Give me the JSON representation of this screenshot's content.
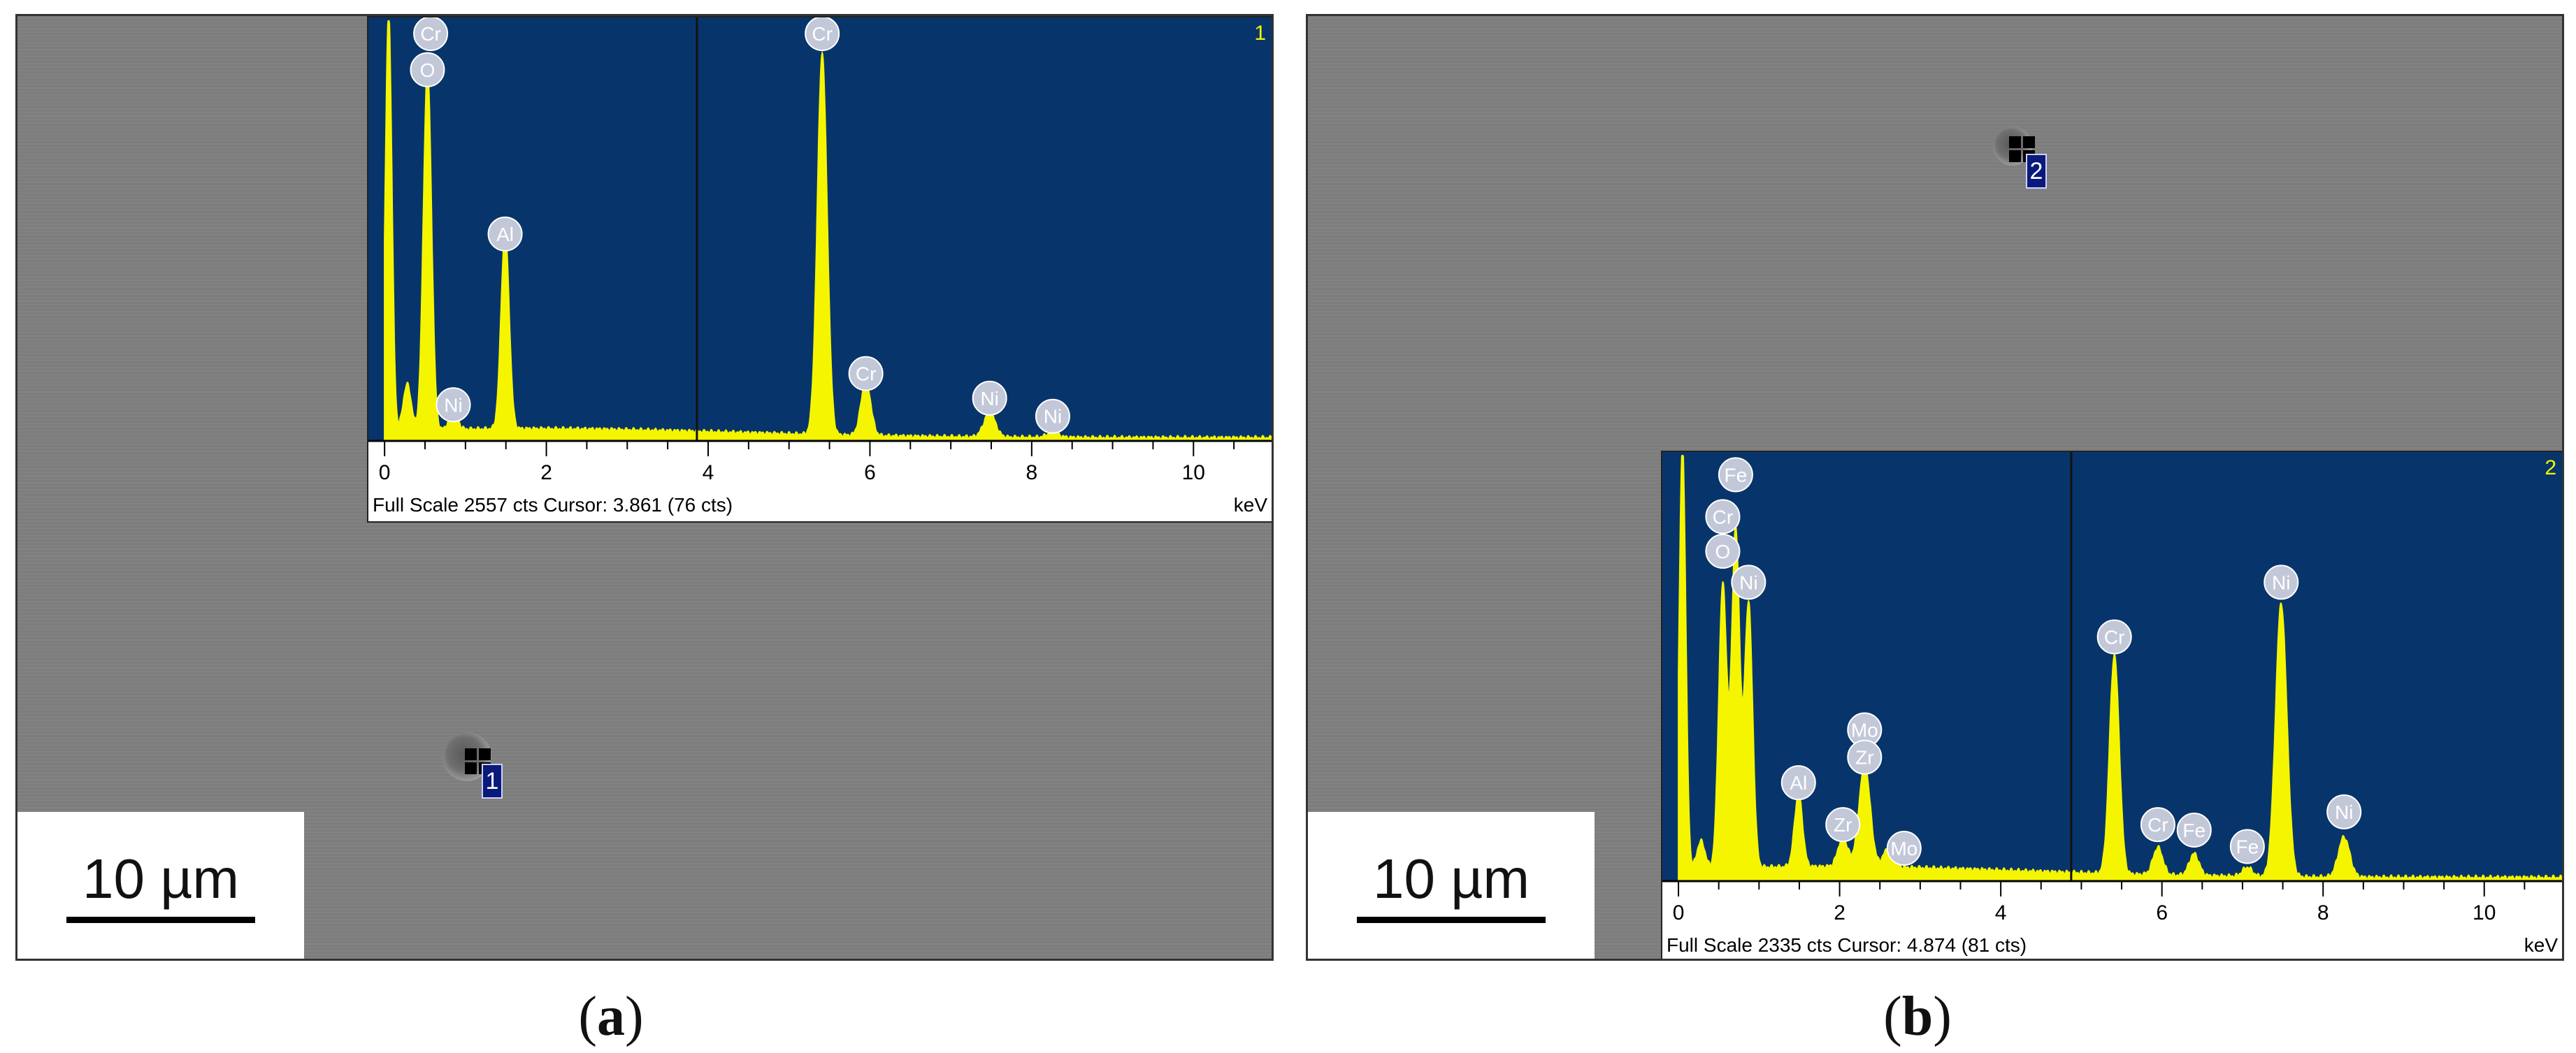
{
  "panels": [
    {
      "id": "a",
      "caption_open": "(",
      "caption_letter": "a",
      "caption_close": ")",
      "scale_bar": "10 µm",
      "spot_label": "1",
      "spectrum_number": "1",
      "footer": "Full Scale 2557 cts Cursor: 3.861  (76 cts)",
      "unit": "keV"
    },
    {
      "id": "b",
      "caption_open": "(",
      "caption_letter": "b",
      "caption_close": ")",
      "scale_bar": "10 µm",
      "spot_label": "2",
      "spectrum_number": "2",
      "footer": "Full Scale 2335 cts Cursor: 4.874  (81 cts)",
      "unit": "keV"
    }
  ],
  "chart_data": [
    {
      "type": "line",
      "xlabel": "keV",
      "xlim": [
        -0.2,
        11.0
      ],
      "ylim": [
        0,
        2557
      ],
      "x_ticks": [
        0,
        2,
        4,
        6,
        8,
        10
      ],
      "full_scale_counts": 2557,
      "cursor_kev": 3.861,
      "cursor_counts": 76,
      "series": [
        {
          "peaks": [
            {
              "x": 0.05,
              "y": 2557,
              "w": 0.04
            },
            {
              "x": 0.28,
              "y": 280,
              "w": 0.05
            },
            {
              "x": 0.53,
              "y": 2200,
              "w": 0.05
            },
            {
              "x": 0.85,
              "y": 120,
              "w": 0.05
            },
            {
              "x": 1.49,
              "y": 1200,
              "w": 0.05
            },
            {
              "x": 5.41,
              "y": 2320,
              "w": 0.06
            },
            {
              "x": 5.95,
              "y": 330,
              "w": 0.06
            },
            {
              "x": 7.48,
              "y": 150,
              "w": 0.07
            },
            {
              "x": 8.26,
              "y": 30,
              "w": 0.07
            }
          ],
          "background": 55
        }
      ],
      "element_labels": [
        {
          "label": "Cr",
          "x": 0.57,
          "y": 2480
        },
        {
          "label": "O",
          "x": 0.53,
          "y": 2260
        },
        {
          "label": "Al",
          "x": 1.49,
          "y": 1260
        },
        {
          "label": "Ni",
          "x": 0.85,
          "y": 220
        },
        {
          "label": "Cr",
          "x": 5.41,
          "y": 2480
        },
        {
          "label": "Cr",
          "x": 5.95,
          "y": 410
        },
        {
          "label": "Ni",
          "x": 7.48,
          "y": 260
        },
        {
          "label": "Ni",
          "x": 8.26,
          "y": 150
        }
      ]
    },
    {
      "type": "line",
      "xlabel": "keV",
      "xlim": [
        -0.2,
        11.0
      ],
      "ylim": [
        0,
        2335
      ],
      "x_ticks": [
        0,
        2,
        4,
        6,
        8,
        10
      ],
      "full_scale_counts": 2335,
      "cursor_kev": 4.874,
      "cursor_counts": 81,
      "series": [
        {
          "peaks": [
            {
              "x": 0.05,
              "y": 2335,
              "w": 0.04
            },
            {
              "x": 0.28,
              "y": 150,
              "w": 0.05
            },
            {
              "x": 0.55,
              "y": 1550,
              "w": 0.05
            },
            {
              "x": 0.71,
              "y": 1850,
              "w": 0.05
            },
            {
              "x": 0.87,
              "y": 1450,
              "w": 0.05
            },
            {
              "x": 1.49,
              "y": 400,
              "w": 0.05
            },
            {
              "x": 2.04,
              "y": 160,
              "w": 0.06
            },
            {
              "x": 2.31,
              "y": 560,
              "w": 0.07
            },
            {
              "x": 2.6,
              "y": 100,
              "w": 0.06
            },
            {
              "x": 5.41,
              "y": 1200,
              "w": 0.06
            },
            {
              "x": 5.95,
              "y": 150,
              "w": 0.06
            },
            {
              "x": 6.4,
              "y": 120,
              "w": 0.06
            },
            {
              "x": 7.06,
              "y": 50,
              "w": 0.06
            },
            {
              "x": 7.48,
              "y": 1500,
              "w": 0.07
            },
            {
              "x": 8.26,
              "y": 220,
              "w": 0.07
            }
          ],
          "background": 60
        }
      ],
      "element_labels": [
        {
          "label": "Fe",
          "x": 0.71,
          "y": 2230
        },
        {
          "label": "Cr",
          "x": 0.55,
          "y": 2000
        },
        {
          "label": "O",
          "x": 0.55,
          "y": 1810
        },
        {
          "label": "Ni",
          "x": 0.87,
          "y": 1640
        },
        {
          "label": "Mo",
          "x": 2.31,
          "y": 830
        },
        {
          "label": "Zr",
          "x": 2.31,
          "y": 680
        },
        {
          "label": "Al",
          "x": 1.49,
          "y": 540
        },
        {
          "label": "Zr",
          "x": 2.04,
          "y": 310
        },
        {
          "label": "Mo",
          "x": 2.8,
          "y": 180
        },
        {
          "label": "Cr",
          "x": 5.41,
          "y": 1340
        },
        {
          "label": "Ni",
          "x": 7.48,
          "y": 1640
        },
        {
          "label": "Cr",
          "x": 5.95,
          "y": 310
        },
        {
          "label": "Fe",
          "x": 6.4,
          "y": 280
        },
        {
          "label": "Fe",
          "x": 7.06,
          "y": 190
        },
        {
          "label": "Ni",
          "x": 8.26,
          "y": 380
        }
      ]
    }
  ]
}
